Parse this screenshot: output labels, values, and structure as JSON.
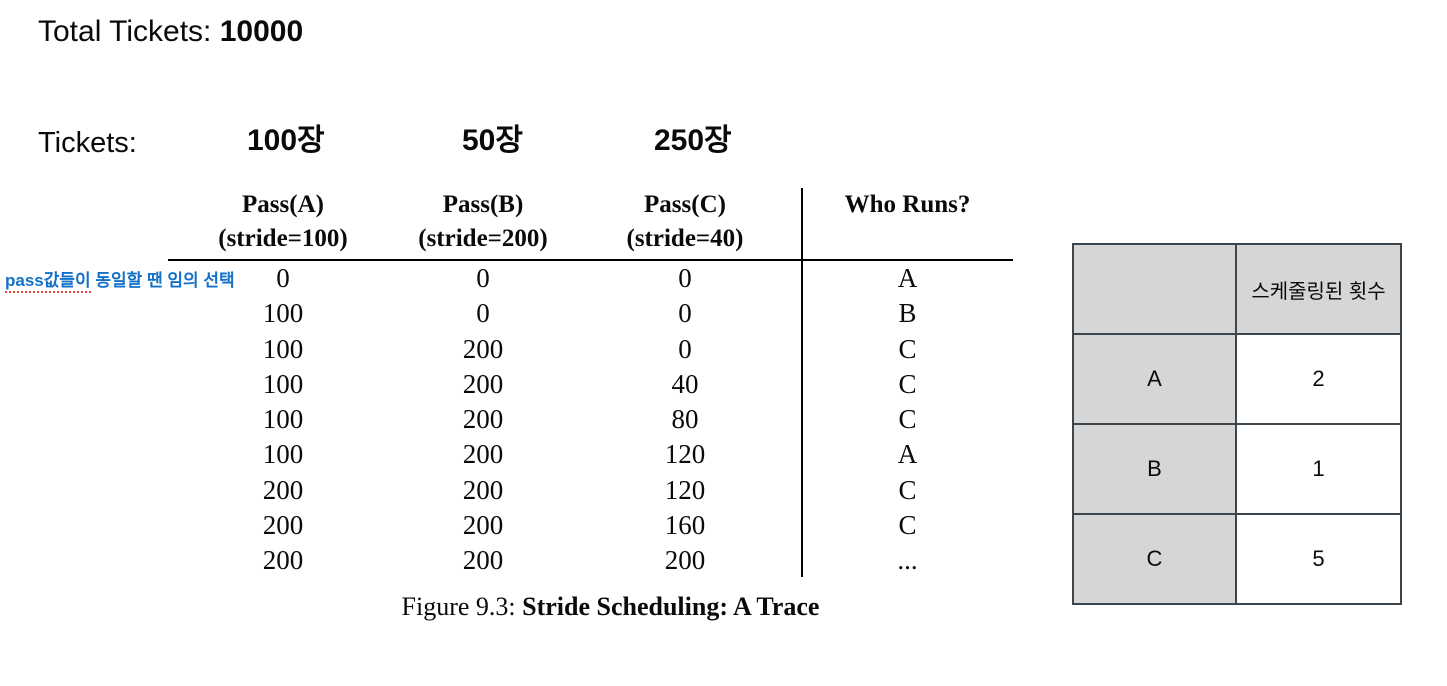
{
  "colors": {
    "annotation-blue": "#1571c8",
    "squiggle-red": "#e8453c",
    "table-fill-gray": "#d6d6d6",
    "table-border": "#3d454d",
    "figure-line": "#000000"
  },
  "header": {
    "total_tickets_label": "Total Tickets: ",
    "total_tickets_value": "10000",
    "tickets_label": "Tickets:",
    "ticket_counts": [
      "100장",
      "50장",
      "250장"
    ]
  },
  "annotation": {
    "underlined": "pass값들이",
    "rest": " 동일할 땐 임의 선택"
  },
  "trace_figure": {
    "headers": [
      {
        "line1": "Pass(A)",
        "line2": "(stride=100)"
      },
      {
        "line1": "Pass(B)",
        "line2": "(stride=200)"
      },
      {
        "line1": "Pass(C)",
        "line2": "(stride=40)"
      },
      {
        "line1": "Who Runs?",
        "line2": ""
      }
    ],
    "rows": [
      [
        "0",
        "0",
        "0",
        "A"
      ],
      [
        "100",
        "0",
        "0",
        "B"
      ],
      [
        "100",
        "200",
        "0",
        "C"
      ],
      [
        "100",
        "200",
        "40",
        "C"
      ],
      [
        "100",
        "200",
        "80",
        "C"
      ],
      [
        "100",
        "200",
        "120",
        "A"
      ],
      [
        "200",
        "200",
        "120",
        "C"
      ],
      [
        "200",
        "200",
        "160",
        "C"
      ],
      [
        "200",
        "200",
        "200",
        "..."
      ]
    ],
    "caption_prefix": "Figure 9.3: ",
    "caption_bold": "Stride Scheduling: A Trace"
  },
  "schedule_table": {
    "header": "스케줄링된 횟수",
    "rows": [
      {
        "process": "A",
        "count": "2"
      },
      {
        "process": "B",
        "count": "1"
      },
      {
        "process": "C",
        "count": "5"
      }
    ]
  }
}
